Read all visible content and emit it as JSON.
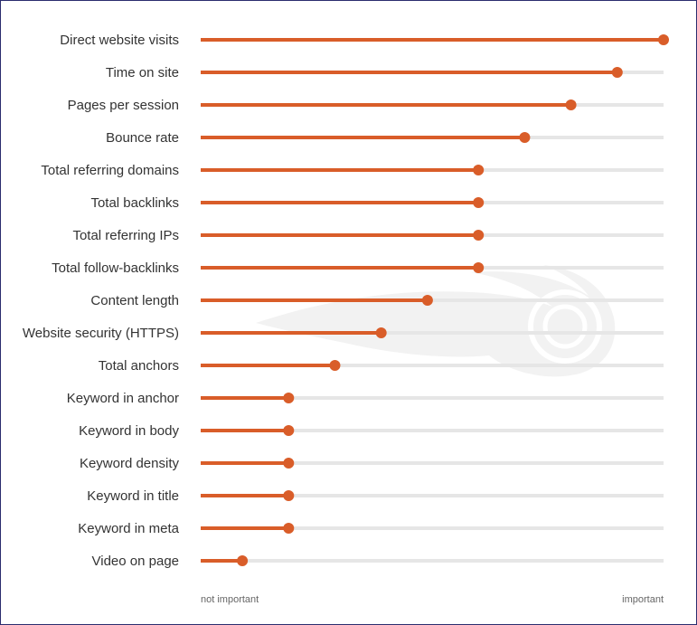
{
  "chart_data": {
    "type": "lollipop",
    "categories": [
      "Direct website visits",
      "Time on site",
      "Pages per session",
      "Bounce rate",
      "Total referring domains",
      "Total backlinks",
      "Total referring IPs",
      "Total follow-backlinks",
      "Content length",
      "Website security (HTTPS)",
      "Total anchors",
      "Keyword in anchor",
      "Keyword in body",
      "Keyword density",
      "Keyword in title",
      "Keyword in meta",
      "Video on page"
    ],
    "values": [
      1.0,
      0.9,
      0.8,
      0.7,
      0.6,
      0.6,
      0.6,
      0.6,
      0.49,
      0.39,
      0.29,
      0.19,
      0.19,
      0.19,
      0.19,
      0.19,
      0.09
    ],
    "xlim": [
      0,
      1
    ],
    "x_axis_labels": {
      "min": "not important",
      "max": "important"
    },
    "grid": false,
    "legend": "none",
    "colors": {
      "bar": "#d95d29",
      "track": "#e6e6e6",
      "label": "#333333",
      "axis_label": "#666666",
      "border": "#2b2d6e",
      "watermark": "#f2f2f2"
    }
  }
}
